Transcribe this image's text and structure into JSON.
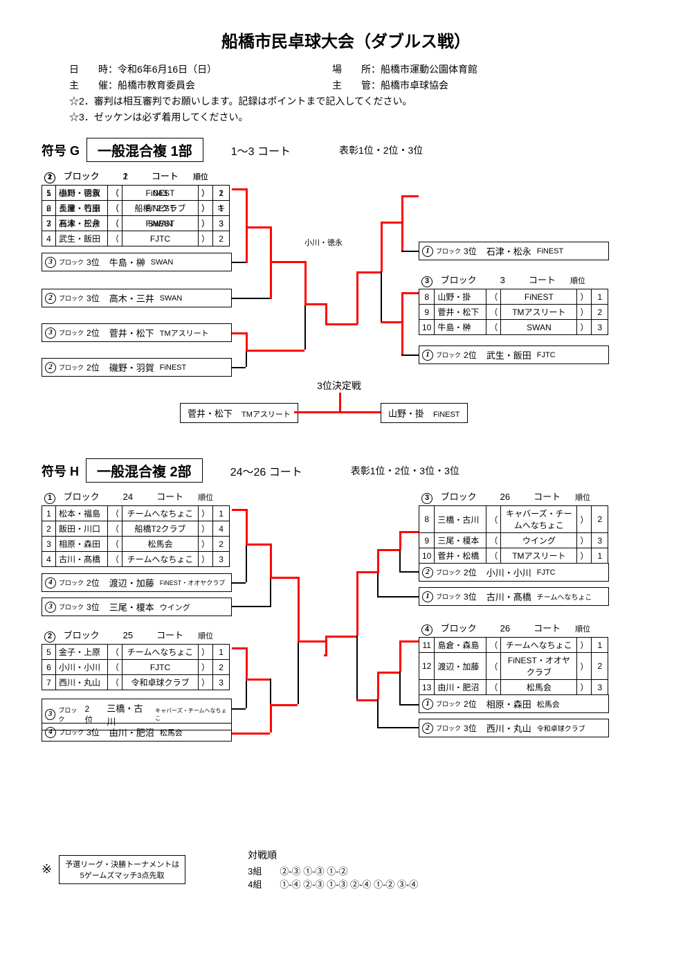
{
  "title": "船橋市民卓球大会（ダブルス戦）",
  "info": {
    "date_label": "日　　時：",
    "date": "令和6年6月16日（日）",
    "venue_label": "場　　所：",
    "venue": "船橋市運動公園体育館",
    "sponsor_label": "主　　催：",
    "sponsor": "船橋市教育委員会",
    "admin_label": "主　　管：",
    "admin": "船橋市卓球協会"
  },
  "notes": [
    "☆2．審判は相互審判でお願いします。記録はポイントまで記入してください。",
    "☆3．ゼッケンは必ず着用してください。"
  ],
  "sectionG": {
    "fugo": "符号 G",
    "division": "一般混合複 1部",
    "courts": "1～3 コート",
    "awards": "表彰1位・2位・3位",
    "block1": {
      "header": [
        "ブロック",
        "1",
        "コート",
        "順位"
      ],
      "rows": [
        {
          "n": "1",
          "pair": "小川・徳永",
          "team": "043",
          "rank": "1"
        },
        {
          "n": "2",
          "pair": "長津・石原",
          "team": "FiNEST",
          "rank": "キ"
        },
        {
          "n": "3",
          "pair": "石津・松永",
          "team": "FiNEST",
          "rank": "3"
        },
        {
          "n": "4",
          "pair": "武生・飯田",
          "team": "FJTC",
          "rank": "2"
        }
      ]
    },
    "block2": {
      "header": [
        "ブロック",
        "2",
        "コート",
        "順位"
      ],
      "rows": [
        {
          "n": "5",
          "pair": "磯野・羽賀",
          "team": "FiNEST",
          "rank": "2"
        },
        {
          "n": "6",
          "pair": "土屋・竹田",
          "team": "船橋T2クラブ",
          "rank": "1"
        },
        {
          "n": "7",
          "pair": "高木・三井",
          "team": "SWAN",
          "rank": "3"
        }
      ]
    },
    "block3": {
      "header": [
        "ブロック",
        "3",
        "コート",
        "順位"
      ],
      "rows": [
        {
          "n": "8",
          "pair": "山野・掛",
          "team": "FiNEST",
          "rank": "1"
        },
        {
          "n": "9",
          "pair": "菅井・松下",
          "team": "TMアスリート",
          "rank": "2"
        },
        {
          "n": "10",
          "pair": "牛島・榊",
          "team": "SWAN",
          "rank": "3"
        }
      ]
    },
    "cons": [
      {
        "blk": "③",
        "rank": "3位",
        "pair": "牛島・榊",
        "team": "SWAN"
      },
      {
        "blk": "②",
        "rank": "3位",
        "pair": "高木・三井",
        "team": "SWAN"
      },
      {
        "blk": "③",
        "rank": "2位",
        "pair": "菅井・松下",
        "team": "TMアスリート"
      },
      {
        "blk": "②",
        "rank": "2位",
        "pair": "磯野・羽賀",
        "team": "FiNEST"
      },
      {
        "blk": "①",
        "rank": "3位",
        "pair": "石津・松永",
        "team": "FiNEST"
      },
      {
        "blk": "①",
        "rank": "2位",
        "pair": "武生・飯田",
        "team": "FJTC"
      }
    ],
    "winner": "小川・徳永",
    "playoff_label": "3位決定戦",
    "playoff": [
      {
        "pair": "菅井・松下",
        "team": "TMアスリート"
      },
      {
        "pair": "山野・掛",
        "team": "FiNEST"
      }
    ]
  },
  "sectionH": {
    "fugo": "符号 H",
    "division": "一般混合複 2部",
    "courts": "24～26 コート",
    "awards": "表彰1位・2位・3位・3位",
    "block1": {
      "header": [
        "ブロック",
        "24",
        "コート",
        "順位"
      ],
      "rows": [
        {
          "n": "1",
          "pair": "松本・福島",
          "team": "チームへなちょこ",
          "rank": "1"
        },
        {
          "n": "2",
          "pair": "飯田・川口",
          "team": "船橋T2クラブ",
          "rank": "4"
        },
        {
          "n": "3",
          "pair": "相原・森田",
          "team": "松馬会",
          "rank": "2"
        },
        {
          "n": "4",
          "pair": "古川・髙橋",
          "team": "チームへなちょこ",
          "rank": "3"
        }
      ]
    },
    "cons1": [
      {
        "blk": "④",
        "rank": "2位",
        "pair": "渡辺・加藤",
        "team": "FiNEST・オオヤクラブ"
      },
      {
        "blk": "③",
        "rank": "3位",
        "pair": "三尾・榎本",
        "team": "ウイング"
      }
    ],
    "block2": {
      "header": [
        "ブロック",
        "25",
        "コート",
        "順位"
      ],
      "rows": [
        {
          "n": "5",
          "pair": "金子・上原",
          "team": "チームへなちょこ",
          "rank": "1"
        },
        {
          "n": "6",
          "pair": "小川・小川",
          "team": "FJTC",
          "rank": "2"
        },
        {
          "n": "7",
          "pair": "西川・丸山",
          "team": "令和卓球クラブ",
          "rank": "3"
        }
      ]
    },
    "cons2": [
      {
        "blk": "③",
        "rank": "2位",
        "pair": "三橋・古川",
        "team": "キャバーズ・チームへなちょこ"
      },
      {
        "blk": "④",
        "rank": "3位",
        "pair": "由川・肥沼",
        "team": "松馬会"
      }
    ],
    "block3": {
      "header": [
        "ブロック",
        "26",
        "コート",
        "順位"
      ],
      "rows": [
        {
          "n": "8",
          "pair": "三橋・古川",
          "team": "キャバーズ・チームへなちょこ",
          "rank": "2"
        },
        {
          "n": "9",
          "pair": "三尾・榎本",
          "team": "ウイング",
          "rank": "3"
        },
        {
          "n": "10",
          "pair": "菅井・松橋",
          "team": "TMアスリート",
          "rank": "1"
        }
      ]
    },
    "cons3": [
      {
        "blk": "②",
        "rank": "2位",
        "pair": "小川・小川",
        "team": "FJTC"
      },
      {
        "blk": "①",
        "rank": "3位",
        "pair": "古川・髙橋",
        "team": "チームへなちょこ"
      }
    ],
    "block4": {
      "header": [
        "ブロック",
        "26",
        "コート",
        "順位"
      ],
      "rows": [
        {
          "n": "11",
          "pair": "島倉・森島",
          "team": "チームへなちょこ",
          "rank": "1"
        },
        {
          "n": "12",
          "pair": "渡辺・加藤",
          "team": "FiNEST・オオヤクラブ",
          "rank": "2"
        },
        {
          "n": "13",
          "pair": "由川・肥沼",
          "team": "松馬会",
          "rank": "3"
        }
      ]
    },
    "cons4": [
      {
        "blk": "①",
        "rank": "2位",
        "pair": "相原・森田",
        "team": "松馬会"
      },
      {
        "blk": "②",
        "rank": "3位",
        "pair": "西川・丸山",
        "team": "令和卓球クラブ"
      }
    ]
  },
  "footer": {
    "rule": [
      "予選リーグ・決勝トーナメントは",
      "5ゲームズマッチ3点先取"
    ],
    "order_title": "対戦順",
    "order3": "3組　　②-③ ①-③ ①-②",
    "order4": "4組　　①-④ ②-③ ①-③ ②-④ ①-② ③-④"
  }
}
